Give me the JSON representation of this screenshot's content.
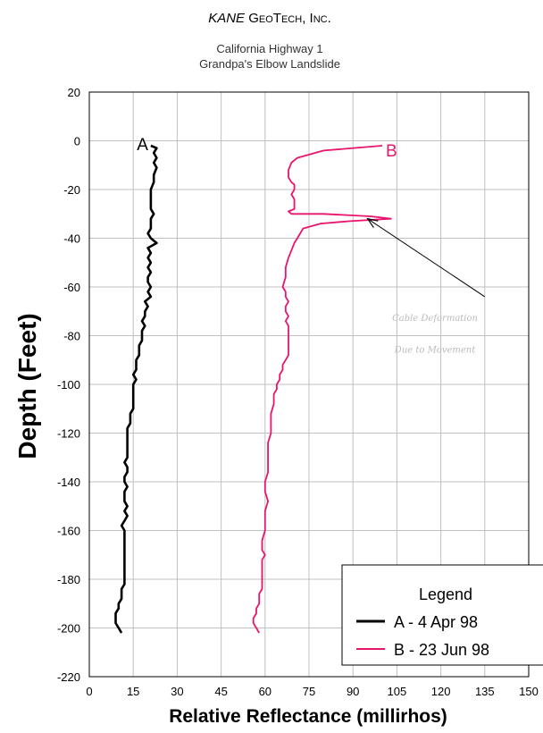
{
  "header": {
    "company_kane": "KANE",
    "company_rest": " GeoTech, Inc.",
    "subtitle_1": "California Highway 1",
    "subtitle_2": "Grandpa's Elbow Landslide"
  },
  "colors": {
    "series_a": "#000000",
    "series_b": "#e8146e",
    "grid": "#c0c0c0"
  },
  "chart_data": {
    "type": "line",
    "title": "",
    "xlabel": "Relative Reflectance (millirhos)",
    "ylabel": "Depth (Feet)",
    "xlim": [
      0,
      150
    ],
    "ylim": [
      -220,
      20
    ],
    "xticks": [
      0,
      15,
      30,
      45,
      60,
      75,
      90,
      105,
      120,
      135,
      150
    ],
    "yticks": [
      20,
      0,
      -20,
      -40,
      -60,
      -80,
      -100,
      -120,
      -140,
      -160,
      -180,
      -200,
      -220
    ],
    "grid": true,
    "legend": {
      "title": "Legend",
      "placement": "bottom-right"
    },
    "series": [
      {
        "name": "A - 4 Apr 98",
        "label": "A",
        "color": "#000000",
        "points": [
          [
            21,
            -2
          ],
          [
            23,
            -3
          ],
          [
            22,
            -5
          ],
          [
            23,
            -7
          ],
          [
            22,
            -9
          ],
          [
            23,
            -11
          ],
          [
            22,
            -14
          ],
          [
            22,
            -17
          ],
          [
            21,
            -20
          ],
          [
            21,
            -23
          ],
          [
            21,
            -26
          ],
          [
            21,
            -28
          ],
          [
            22,
            -30
          ],
          [
            21,
            -32
          ],
          [
            21,
            -34
          ],
          [
            21,
            -36
          ],
          [
            20,
            -38
          ],
          [
            21,
            -40
          ],
          [
            23,
            -42
          ],
          [
            20,
            -44
          ],
          [
            21,
            -46
          ],
          [
            20,
            -48
          ],
          [
            21,
            -50
          ],
          [
            20,
            -52
          ],
          [
            21,
            -54
          ],
          [
            20,
            -56
          ],
          [
            20,
            -58
          ],
          [
            21,
            -60
          ],
          [
            20,
            -62
          ],
          [
            21,
            -64
          ],
          [
            19,
            -66
          ],
          [
            20,
            -68
          ],
          [
            19,
            -70
          ],
          [
            19,
            -72
          ],
          [
            18,
            -74
          ],
          [
            19,
            -76
          ],
          [
            18,
            -78
          ],
          [
            18,
            -80
          ],
          [
            18,
            -82
          ],
          [
            17,
            -84
          ],
          [
            17,
            -86
          ],
          [
            17,
            -88
          ],
          [
            16,
            -90
          ],
          [
            16,
            -92
          ],
          [
            16,
            -94
          ],
          [
            15,
            -96
          ],
          [
            16,
            -98
          ],
          [
            15,
            -100
          ],
          [
            15,
            -102
          ],
          [
            15,
            -104
          ],
          [
            15,
            -106
          ],
          [
            15,
            -108
          ],
          [
            15,
            -110
          ],
          [
            14,
            -112
          ],
          [
            14,
            -114
          ],
          [
            14,
            -116
          ],
          [
            13,
            -118
          ],
          [
            13,
            -120
          ],
          [
            13,
            -122
          ],
          [
            13,
            -124
          ],
          [
            13,
            -126
          ],
          [
            13,
            -128
          ],
          [
            13,
            -130
          ],
          [
            12,
            -132
          ],
          [
            13,
            -134
          ],
          [
            13,
            -136
          ],
          [
            12,
            -138
          ],
          [
            12,
            -140
          ],
          [
            13,
            -142
          ],
          [
            12,
            -144
          ],
          [
            12,
            -146
          ],
          [
            12,
            -148
          ],
          [
            13,
            -150
          ],
          [
            12,
            -152
          ],
          [
            13,
            -154
          ],
          [
            12,
            -156
          ],
          [
            11,
            -158
          ],
          [
            12,
            -160
          ],
          [
            12,
            -162
          ],
          [
            12,
            -164
          ],
          [
            12,
            -166
          ],
          [
            12,
            -168
          ],
          [
            12,
            -170
          ],
          [
            12,
            -172
          ],
          [
            12,
            -174
          ],
          [
            12,
            -176
          ],
          [
            12,
            -178
          ],
          [
            12,
            -180
          ],
          [
            12,
            -182
          ],
          [
            11,
            -184
          ],
          [
            11,
            -186
          ],
          [
            11,
            -188
          ],
          [
            10,
            -190
          ],
          [
            10,
            -192
          ],
          [
            9,
            -194
          ],
          [
            9,
            -196
          ],
          [
            9,
            -198
          ],
          [
            10,
            -200
          ],
          [
            11,
            -202
          ]
        ]
      },
      {
        "name": "B - 23 Jun 98",
        "label": "B",
        "color": "#e8146e",
        "points": [
          [
            100,
            -2
          ],
          [
            80,
            -4
          ],
          [
            71,
            -7
          ],
          [
            69,
            -9
          ],
          [
            68,
            -12
          ],
          [
            68,
            -15
          ],
          [
            69,
            -17
          ],
          [
            70,
            -18
          ],
          [
            70,
            -20
          ],
          [
            69,
            -22
          ],
          [
            70,
            -24
          ],
          [
            70,
            -26
          ],
          [
            70,
            -28
          ],
          [
            68,
            -29
          ],
          [
            69,
            -30
          ],
          [
            80,
            -30
          ],
          [
            96,
            -31
          ],
          [
            103,
            -32
          ],
          [
            89,
            -33
          ],
          [
            79,
            -34
          ],
          [
            73,
            -36
          ],
          [
            72,
            -38
          ],
          [
            71,
            -40
          ],
          [
            70,
            -42
          ],
          [
            69,
            -45
          ],
          [
            68,
            -48
          ],
          [
            67,
            -52
          ],
          [
            67,
            -56
          ],
          [
            66,
            -60
          ],
          [
            67,
            -62
          ],
          [
            67,
            -64
          ],
          [
            68,
            -66
          ],
          [
            67,
            -68
          ],
          [
            67,
            -70
          ],
          [
            68,
            -72
          ],
          [
            67,
            -74
          ],
          [
            68,
            -76
          ],
          [
            68,
            -80
          ],
          [
            68,
            -84
          ],
          [
            68,
            -88
          ],
          [
            67,
            -90
          ],
          [
            66,
            -92
          ],
          [
            66,
            -94
          ],
          [
            65,
            -96
          ],
          [
            65,
            -98
          ],
          [
            64,
            -100
          ],
          [
            64,
            -102
          ],
          [
            63,
            -104
          ],
          [
            63,
            -108
          ],
          [
            62,
            -112
          ],
          [
            62,
            -116
          ],
          [
            62,
            -120
          ],
          [
            61,
            -124
          ],
          [
            61,
            -128
          ],
          [
            61,
            -132
          ],
          [
            61,
            -136
          ],
          [
            60,
            -140
          ],
          [
            60,
            -144
          ],
          [
            61,
            -148
          ],
          [
            60,
            -152
          ],
          [
            60,
            -156
          ],
          [
            60,
            -160
          ],
          [
            59,
            -164
          ],
          [
            59,
            -168
          ],
          [
            60,
            -170
          ],
          [
            59,
            -172
          ],
          [
            59,
            -176
          ],
          [
            59,
            -180
          ],
          [
            59,
            -184
          ],
          [
            58,
            -186
          ],
          [
            58,
            -188
          ],
          [
            58,
            -190
          ],
          [
            57,
            -192
          ],
          [
            57,
            -194
          ],
          [
            56,
            -196
          ],
          [
            56,
            -198
          ],
          [
            57,
            -200
          ],
          [
            58,
            -202
          ]
        ]
      }
    ],
    "annotations": [
      {
        "text_1": "Cable Deformation",
        "text_2": "Due to Movement",
        "arrow_from": [
          135,
          -64
        ],
        "arrow_to": [
          95,
          -32
        ]
      }
    ]
  }
}
